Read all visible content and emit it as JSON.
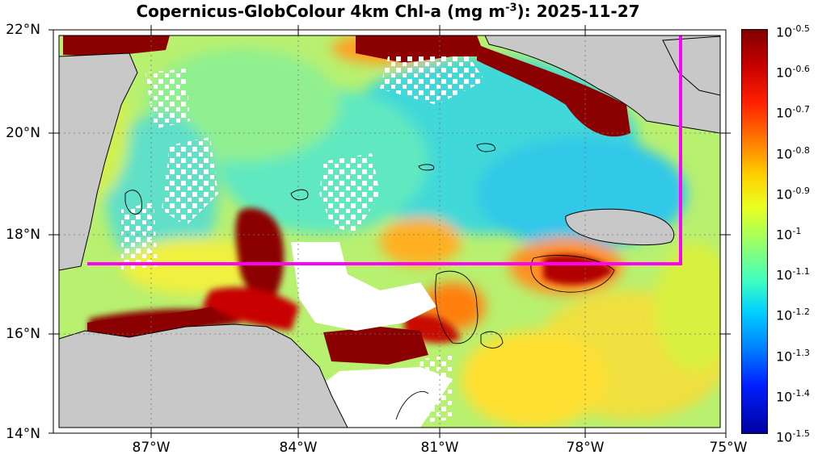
{
  "title": {
    "prefix": "Copernicus-GlobColour 4km Chl-a (mg m",
    "exponent": "-3",
    "suffix": "): 2025-11-27"
  },
  "axes": {
    "y_ticks": [
      "22°N",
      "20°N",
      "18°N",
      "16°N",
      "14°N"
    ],
    "x_ticks": [
      "87°W",
      "84°W",
      "81°W",
      "78°W",
      "75°W"
    ],
    "lat_range": [
      14,
      22
    ],
    "lon_range": [
      -89,
      -75
    ],
    "grid": true
  },
  "colorbar": {
    "base": "10",
    "exponents": [
      "-0.5",
      "-0.6",
      "-0.7",
      "-0.8",
      "-0.9",
      "-1",
      "-1.1",
      "-1.2",
      "-1.3",
      "-1.4",
      "-1.5"
    ],
    "colormap": "jet"
  },
  "colors": {
    "land": "#c8c8c8",
    "no_data": "#ffffff",
    "region_box": "#ff00ff",
    "high_chl": "#8b0000",
    "mid_chl": "#ffd000",
    "low_chl": "#30d0e0"
  },
  "map_features": {
    "region_box_label": "",
    "landmasses": [
      "central-america",
      "cuba",
      "jamaica",
      "hispaniola"
    ]
  }
}
